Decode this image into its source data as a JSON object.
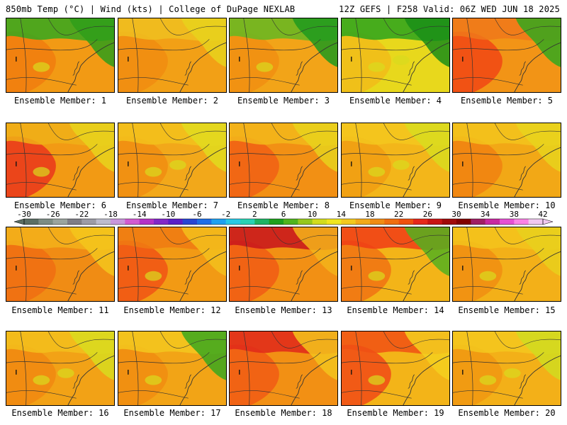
{
  "header": {
    "left": "850mb Temp (°C) | Wind (kts) | College of DuPage NEXLAB",
    "right": "12Z GEFS | F258 Valid: 06Z WED JUN 18 2025"
  },
  "members": [
    {
      "label": "Ensemble Member: 1",
      "base": "#f29a14",
      "north": "#34a81e",
      "ne": "#2f9e1a",
      "hot": "#f0780e",
      "coolspots": 1
    },
    {
      "label": "Ensemble Member: 2",
      "base": "#f2a016",
      "north": "#f0c020",
      "ne": "#e8d21c",
      "hot": "#f08a10",
      "coolspots": 0
    },
    {
      "label": "Ensemble Member: 3",
      "base": "#f2a418",
      "north": "#64b822",
      "ne": "#1e9a1e",
      "hot": "#f08c10",
      "coolspots": 1
    },
    {
      "label": "Ensemble Member: 4",
      "base": "#e8d81c",
      "north": "#2aa41c",
      "ne": "#1a8e18",
      "hot": "#f3b818",
      "coolspots": 2
    },
    {
      "label": "Ensemble Member: 5",
      "base": "#f29416",
      "north": "#f0781a",
      "ne": "#34a81e",
      "hot": "#f03c14",
      "coolspots": 0
    },
    {
      "label": "Ensemble Member: 6",
      "base": "#f29a14",
      "north": "#f0b018",
      "ne": "#e8d41c",
      "hot": "#e8281c",
      "coolspots": 1
    },
    {
      "label": "Ensemble Member: 7",
      "base": "#f2a81a",
      "north": "#f3c21c",
      "ne": "#e0dc1e",
      "hot": "#f08a10",
      "coolspots": 2
    },
    {
      "label": "Ensemble Member: 8",
      "base": "#f29014",
      "north": "#f3b81a",
      "ne": "#e8d21c",
      "hot": "#f05a14",
      "coolspots": 0
    },
    {
      "label": "Ensemble Member: 9",
      "base": "#f3b61a",
      "north": "#f3c81e",
      "ne": "#d8dc1e",
      "hot": "#f09a12",
      "coolspots": 2
    },
    {
      "label": "Ensemble Member: 10",
      "base": "#f2a816",
      "north": "#f3c41c",
      "ne": "#e8d41c",
      "hot": "#f07c10",
      "coolspots": 0
    },
    {
      "label": "Ensemble Member: 11",
      "base": "#f08c14",
      "north": "#f3b21a",
      "ne": "#f3c61c",
      "hot": "#f06a12",
      "coolspots": 0
    },
    {
      "label": "Ensemble Member: 12",
      "base": "#f29a14",
      "north": "#f07a12",
      "ne": "#f3c01c",
      "hot": "#f04a14",
      "coolspots": 1
    },
    {
      "label": "Ensemble Member: 13",
      "base": "#f29014",
      "north": "#c8141c",
      "ne": "#f3b41a",
      "hot": "#f05414",
      "coolspots": 0
    },
    {
      "label": "Ensemble Member: 14",
      "base": "#f3b418",
      "north": "#f03c16",
      "ne": "#54b020",
      "hot": "#f06a12",
      "coolspots": 1
    },
    {
      "label": "Ensemble Member: 15",
      "base": "#f3b018",
      "north": "#f3c41c",
      "ne": "#e8d01c",
      "hot": "#f08a10",
      "coolspots": 1
    },
    {
      "label": "Ensemble Member: 16",
      "base": "#f2a216",
      "north": "#f3c01c",
      "ne": "#d8dc1e",
      "hot": "#f08410",
      "coolspots": 2
    },
    {
      "label": "Ensemble Member: 17",
      "base": "#f2a416",
      "north": "#f3c81e",
      "ne": "#3aa81e",
      "hot": "#f08a10",
      "coolspots": 1
    },
    {
      "label": "Ensemble Member: 18",
      "base": "#f29014",
      "north": "#e0281a",
      "ne": "#f3c41c",
      "hot": "#f05414",
      "coolspots": 0
    },
    {
      "label": "Ensemble Member: 19",
      "base": "#f3b418",
      "north": "#f05014",
      "ne": "#f3d01e",
      "hot": "#f03c16",
      "coolspots": 1
    },
    {
      "label": "Ensemble Member: 20",
      "base": "#f3b018",
      "north": "#f3c81e",
      "ne": "#d0dc20",
      "hot": "#f09410",
      "coolspots": 2
    }
  ],
  "colorbar": {
    "ticks": [
      "-30",
      "-26",
      "-22",
      "-18",
      "-14",
      "-10",
      "-6",
      "-2",
      "2",
      "6",
      "10",
      "14",
      "18",
      "22",
      "26",
      "30",
      "34",
      "38",
      "42"
    ],
    "colors": [
      "#5a6e64",
      "#7c8c84",
      "#9aa49e",
      "#7e7e86",
      "#9c9ca6",
      "#bcbccc",
      "#c896dc",
      "#d25ad2",
      "#b432c8",
      "#8228c8",
      "#5a1ec8",
      "#2846d2",
      "#1e6ee6",
      "#1ea0f0",
      "#28c8e6",
      "#28d2b4",
      "#1eb464",
      "#1ea01e",
      "#50b41e",
      "#96c81e",
      "#d2dc1e",
      "#f0e61e",
      "#f3c81e",
      "#f3aa1a",
      "#f08c14",
      "#f06e10",
      "#f0500e",
      "#e6281a",
      "#c81414",
      "#a00a0a",
      "#820000",
      "#a01e64",
      "#c828a0",
      "#e650d2",
      "#fa82e6",
      "#f0c8f0"
    ]
  }
}
